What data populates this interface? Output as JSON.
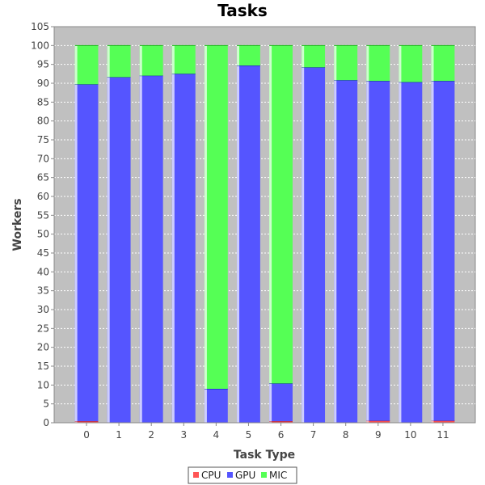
{
  "chart_data": {
    "type": "bar",
    "stacked": true,
    "title": "Tasks",
    "xlabel": "Task Type",
    "ylabel": "Workers",
    "categories": [
      "0",
      "1",
      "2",
      "3",
      "4",
      "5",
      "6",
      "7",
      "8",
      "9",
      "10",
      "11"
    ],
    "ylim": [
      0,
      105
    ],
    "yticks": [
      0,
      5,
      10,
      15,
      20,
      25,
      30,
      35,
      40,
      45,
      50,
      55,
      60,
      65,
      70,
      75,
      80,
      85,
      90,
      95,
      100,
      105
    ],
    "grid": true,
    "legend": "bottom-center",
    "series": [
      {
        "name": "CPU",
        "color": "#ff5555",
        "values": [
          0.4,
          0,
          0,
          0,
          0,
          0,
          0.4,
          0,
          0,
          0.5,
          0,
          0.5
        ]
      },
      {
        "name": "GPU",
        "color": "#5555ff",
        "values": [
          89.3,
          91.6,
          92.0,
          92.5,
          9.0,
          94.7,
          10.0,
          94.2,
          90.8,
          90.1,
          90.3,
          90.1
        ]
      },
      {
        "name": "MIC",
        "color": "#55ff55",
        "values": [
          10.3,
          8.4,
          8.0,
          7.5,
          91.0,
          5.3,
          89.6,
          5.8,
          9.2,
          9.4,
          9.7,
          9.4
        ]
      }
    ]
  }
}
